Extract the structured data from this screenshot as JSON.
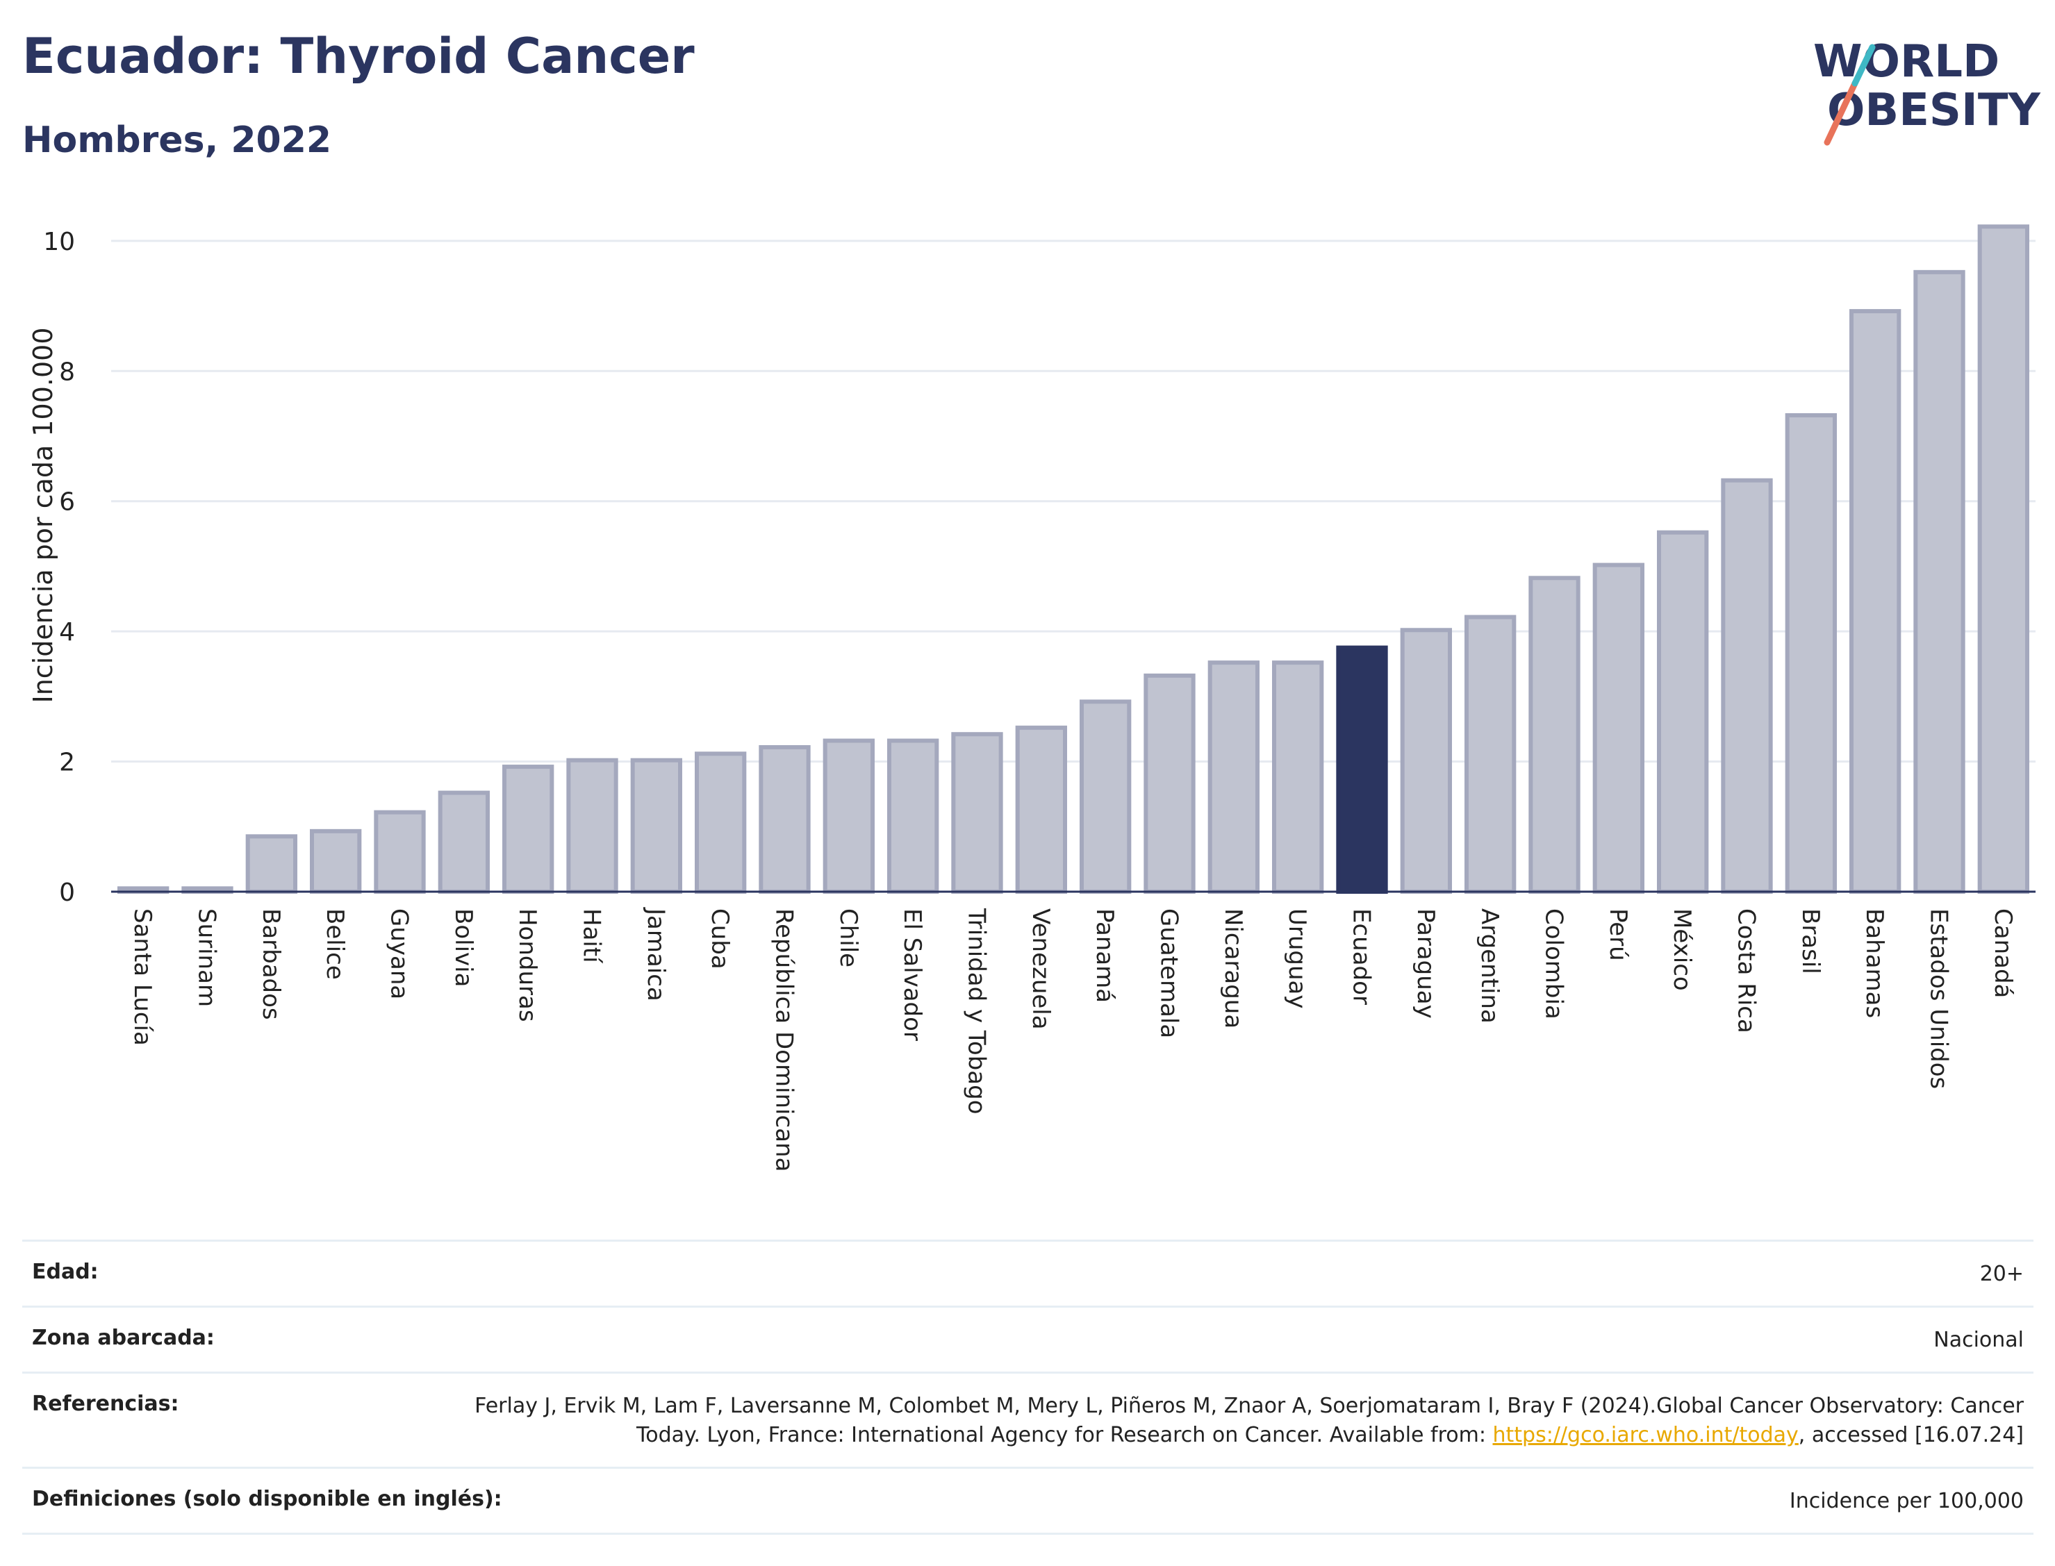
{
  "header": {
    "title": "Ecuador: Thyroid Cancer",
    "subtitle": "Hombres, 2022"
  },
  "logo": {
    "line1": "WORLD",
    "line2": "OBESITY",
    "colors": [
      "#2b3560",
      "#e8735a",
      "#3fb8c5"
    ]
  },
  "chart_data": {
    "type": "bar",
    "ylabel": "Incidencia por cada 100.000",
    "xlabel": "",
    "ylim": [
      0,
      10.5
    ],
    "yticks": [
      0,
      2,
      4,
      6,
      8,
      10
    ],
    "grid": true,
    "highlight": "Ecuador",
    "colors": {
      "bar": "#c0c3d0",
      "bar_stroke": "#a4a8bd",
      "highlight": "#2b3560"
    },
    "categories": [
      "Santa Lucía",
      "Surinam",
      "Barbados",
      "Belice",
      "Guyana",
      "Bolivia",
      "Honduras",
      "Haití",
      "Jamaica",
      "Cuba",
      "República Dominicana",
      "Chile",
      "El Salvador",
      "Trinidad y Tobago",
      "Venezuela",
      "Panamá",
      "Guatemala",
      "Nicaragua",
      "Uruguay",
      "Ecuador",
      "Paraguay",
      "Argentina",
      "Colombia",
      "Perú",
      "México",
      "Costa Rica",
      "Brasil",
      "Bahamas",
      "Estados Unidos",
      "Canadá"
    ],
    "values": [
      0.05,
      0.05,
      0.85,
      0.93,
      1.22,
      1.52,
      1.92,
      2.02,
      2.02,
      2.12,
      2.22,
      2.32,
      2.32,
      2.42,
      2.52,
      2.92,
      3.32,
      3.52,
      3.52,
      3.75,
      4.02,
      4.22,
      4.82,
      5.02,
      5.52,
      6.32,
      7.32,
      8.92,
      9.52,
      10.22
    ]
  },
  "info": {
    "edad": {
      "label": "Edad:",
      "value": "20+"
    },
    "zona": {
      "label": "Zona abarcada:",
      "value": "Nacional"
    },
    "referencias": {
      "label": "Referencias:",
      "text1": "Ferlay J, Ervik M, Lam F, Laversanne M, Colombet M, Mery L, Piñeros M, Znaor A, Soerjomataram I, Bray F (2024).Global Cancer Observatory: Cancer Today. Lyon, France: International Agency for Research on Cancer. Available from: ",
      "link": "https://gco.iarc.who.int/today",
      "text2": ", accessed [16.07.24]"
    },
    "definiciones": {
      "label": "Definiciones (solo disponible en inglés):",
      "value": "Incidence per 100,000"
    }
  }
}
